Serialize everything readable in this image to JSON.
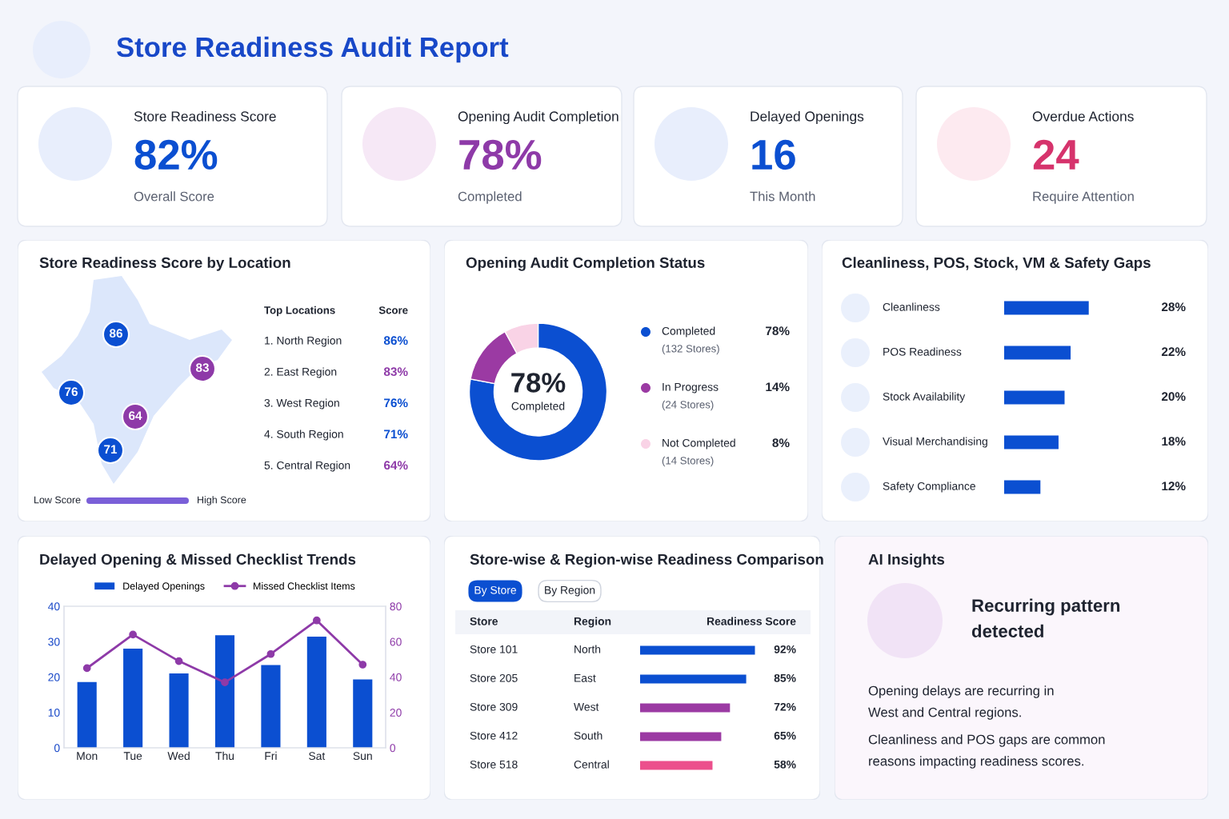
{
  "chart_data": [
    {
      "type": "other",
      "title": "Store Readiness Audit Report",
      "annotations": [
        "Store Readiness Score",
        "82%",
        "Overall Score",
        "Opening Audit Completion",
        "78%",
        "Completed",
        "Delayed Openings",
        "16",
        "This Month",
        "Overdue Actions",
        "24",
        "Require Attention"
      ],
      "colors": [
        "#0b4fd1",
        "#8e3aa8",
        "#0b4fd1",
        "#d6336c"
      ]
    },
    {
      "type": "other",
      "title": "Store Readiness Score by Location",
      "categories": [
        "1. North Region",
        "2. East Region",
        "3. West Region",
        "4. South Region",
        "5. Central Region"
      ],
      "value_labels": [
        "86%",
        "83%",
        "76%",
        "71%",
        "64%"
      ],
      "colors": [
        "#0b4fd1",
        "#8e3aa8",
        "#0b4fd1",
        "#0b4fd1",
        "#8e3aa8"
      ],
      "annotations": [
        "Top Locations",
        "Score",
        "Low Score",
        "High Score",
        "86",
        "83",
        "76",
        "71",
        "64"
      ]
    },
    {
      "type": "donut",
      "title": "Opening Audit Completion Status",
      "categories": [
        "Completed",
        "In Progress",
        "Not Completed"
      ],
      "values": [
        78,
        14,
        8
      ],
      "colors": [
        "#0b4fd1",
        "#9b3aa3",
        "#f9d3e6"
      ],
      "value_labels": [
        "78%",
        "14%",
        "8%"
      ],
      "annotations": [
        "78%",
        "Completed",
        "(132 Stores)",
        "(24 Stores)",
        "(14 Stores)"
      ],
      "legend": "right"
    },
    {
      "type": "bar",
      "orientation": "horizontal",
      "title": "Cleanliness, POS, Stock, VM & Safety Gaps",
      "categories": [
        "Cleanliness",
        "POS Readiness",
        "Stock Availability",
        "Visual Merchandising",
        "Safety Compliance"
      ],
      "values": [
        28,
        22,
        20,
        18,
        12
      ],
      "value_labels": [
        "28%",
        "22%",
        "20%",
        "18%",
        "12%"
      ],
      "color": "#0b4fd1"
    },
    {
      "type": "bar",
      "title": "Delayed Opening & Missed Checklist Trends",
      "categories": [
        "Mon",
        "Tue",
        "Wed",
        "Thu",
        "Fri",
        "Sat",
        "Sun"
      ],
      "series": [
        {
          "name": "Delayed Openings",
          "type": "bar",
          "color": "#0b4fd1",
          "values": [
            18.6,
            28,
            21,
            31.8,
            23.4,
            31.4,
            19.3
          ]
        },
        {
          "name": "Missed Checklist Items",
          "type": "line",
          "axis": "y2",
          "color": "#8e3aa8",
          "values": [
            45,
            64,
            49,
            37,
            53,
            72,
            47
          ]
        }
      ],
      "ylim": [
        0,
        40
      ],
      "yticks": [
        0,
        10,
        20,
        30,
        40
      ],
      "y2lim": [
        0,
        80
      ],
      "y2ticks": [
        0,
        20,
        40,
        60,
        80
      ],
      "legend": "top",
      "marker": "circle",
      "line_style": "solid"
    },
    {
      "type": "bar",
      "orientation": "horizontal",
      "title": "Store-wise & Region-wise Readiness Comparison",
      "categories": [
        "Store 101",
        "Store 205",
        "Store 309",
        "Store 412",
        "Store 518"
      ],
      "values": [
        92,
        85,
        72,
        65,
        58
      ],
      "colors": [
        "#0b4fd1",
        "#0b4fd1",
        "#9b3aa3",
        "#9b3aa3",
        "#ec4f8c"
      ],
      "value_labels": [
        "92%",
        "85%",
        "72%",
        "65%",
        "58%"
      ],
      "annotations": [
        "By Store",
        "By Region",
        "Store",
        "Region",
        "Readiness Score",
        "North",
        "East",
        "West",
        "South",
        "Central"
      ]
    },
    {
      "type": "other",
      "title": "AI Insights",
      "annotations": [
        "Recurring pattern",
        "detected",
        "Opening delays are recurring in",
        "West and Central regions.",
        "Cleanliness and POS gaps are common",
        "reasons impacting readiness scores."
      ]
    }
  ]
}
